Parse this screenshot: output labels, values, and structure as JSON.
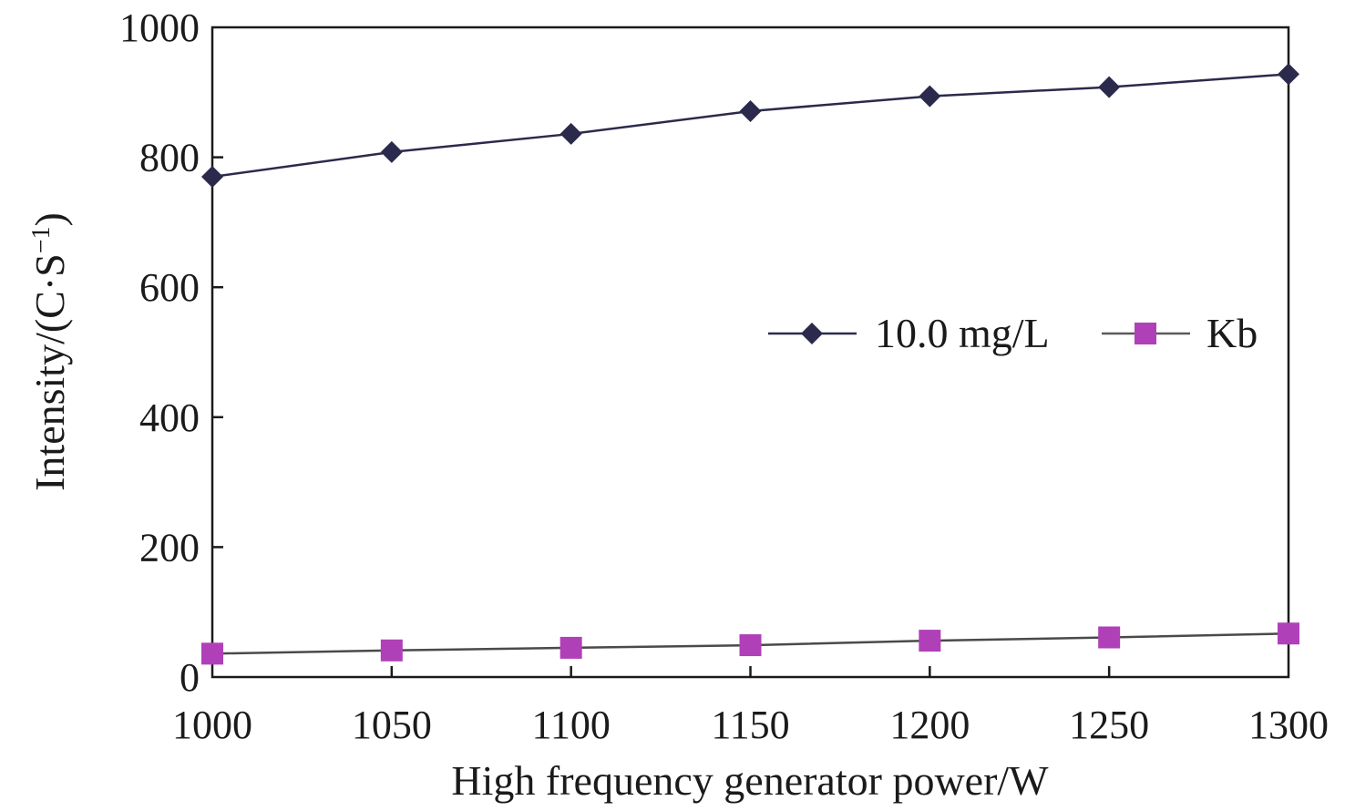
{
  "chart_data": {
    "type": "line",
    "title": "",
    "xlabel": "High frequency generator power/W",
    "ylabel": "Intensity/(C·S",
    "ylabel_sup": "−1",
    "ylabel_close": ")",
    "x": [
      1000,
      1050,
      1100,
      1150,
      1200,
      1250,
      1300
    ],
    "x_tick_labels": [
      "1000",
      "1050",
      "1100",
      "1150",
      "1200",
      "1250",
      "1300"
    ],
    "y_tick_labels": [
      "0",
      "200",
      "400",
      "600",
      "800",
      "1000"
    ],
    "xlim": [
      1000,
      1300
    ],
    "ylim": [
      0,
      1000
    ],
    "grid": false,
    "legend_position": "right-middle",
    "series": [
      {
        "name": "10.0 mg/L",
        "marker": "diamond",
        "color": "#2b2a4c",
        "values": [
          770,
          808,
          836,
          871,
          894,
          908,
          928
        ]
      },
      {
        "name": "Kb",
        "marker": "square",
        "color": "#b040b8",
        "values": [
          36,
          41,
          45,
          49,
          56,
          61,
          67
        ]
      }
    ]
  }
}
